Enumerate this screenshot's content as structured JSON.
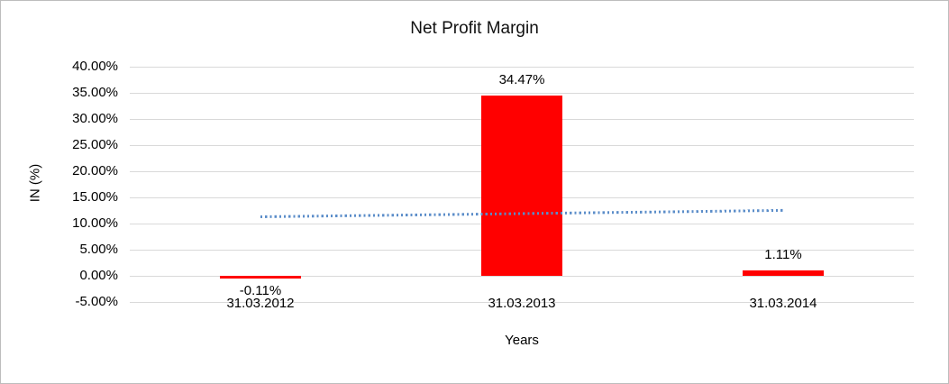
{
  "chart_data": {
    "type": "bar",
    "title": "Net Profit Margin",
    "xlabel": "Years",
    "ylabel": "IN (%)",
    "categories": [
      "31.03.2012",
      "31.03.2013",
      "31.03.2014"
    ],
    "series": [
      {
        "name": "Net Profit Margin",
        "values": [
          -0.11,
          34.47,
          1.11
        ]
      }
    ],
    "value_labels": [
      "-0.11%",
      "34.47%",
      "1.11%"
    ],
    "y_tick_labels": [
      "40.00%",
      "35.00%",
      "30.00%",
      "25.00%",
      "20.00%",
      "15.00%",
      "10.00%",
      "5.00%",
      "0.00%",
      "-5.00%"
    ],
    "ylim": [
      -5,
      40
    ],
    "y_step": 5,
    "grid": true,
    "legend": "none",
    "trendline": {
      "type": "linear",
      "style": "dotted",
      "start_value": 11.21,
      "end_value": 12.43
    },
    "colors": {
      "bar": "#ff0000",
      "trendline": "#5b8dc9",
      "gridline": "#d9d9d9",
      "text": "#000000",
      "border": "#bdbdbd"
    }
  }
}
